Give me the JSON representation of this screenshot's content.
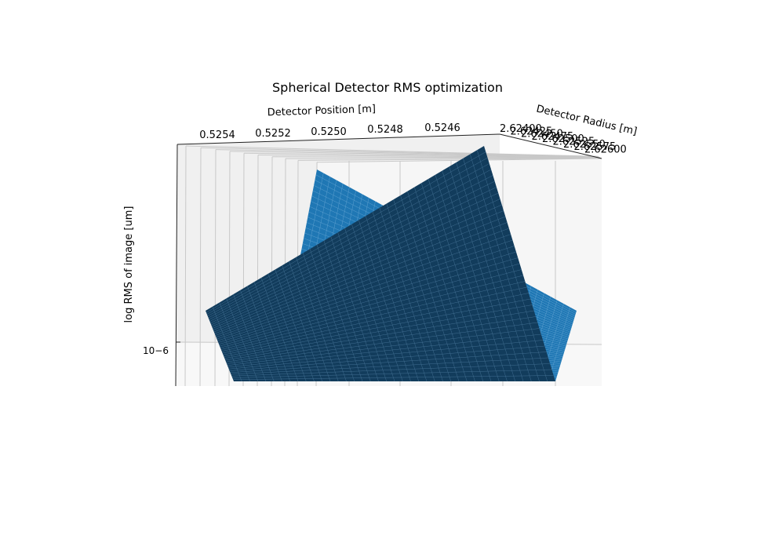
{
  "chart_data": {
    "type": "surface3d",
    "title": "Spherical Detector RMS optimization",
    "xlabel": "Detector Position [m]",
    "ylabel": "Detector Radius [m]",
    "zlabel": "log RMS of image [um]",
    "z_scale": "log",
    "x_ticks": [
      "0.5254",
      "0.5252",
      "0.5250",
      "0.5248",
      "0.5246"
    ],
    "y_ticks": [
      "2.62400",
      "2.62425",
      "2.62450",
      "2.62475",
      "2.62500",
      "2.62525",
      "2.62550",
      "2.62575",
      "2.62600"
    ],
    "z_ticks": [
      "10−6"
    ],
    "grid": true,
    "surfaces": [
      {
        "name": "",
        "color": "#1f77b4"
      },
      {
        "name": "",
        "color": "#123c5c"
      }
    ],
    "colors": {
      "surface_light": "#1f77b4",
      "surface_dark": "#123c5c",
      "pane": "#f2f2f2",
      "pane_floor": "#f7f7f7",
      "grid": "#c8c8c8"
    }
  }
}
